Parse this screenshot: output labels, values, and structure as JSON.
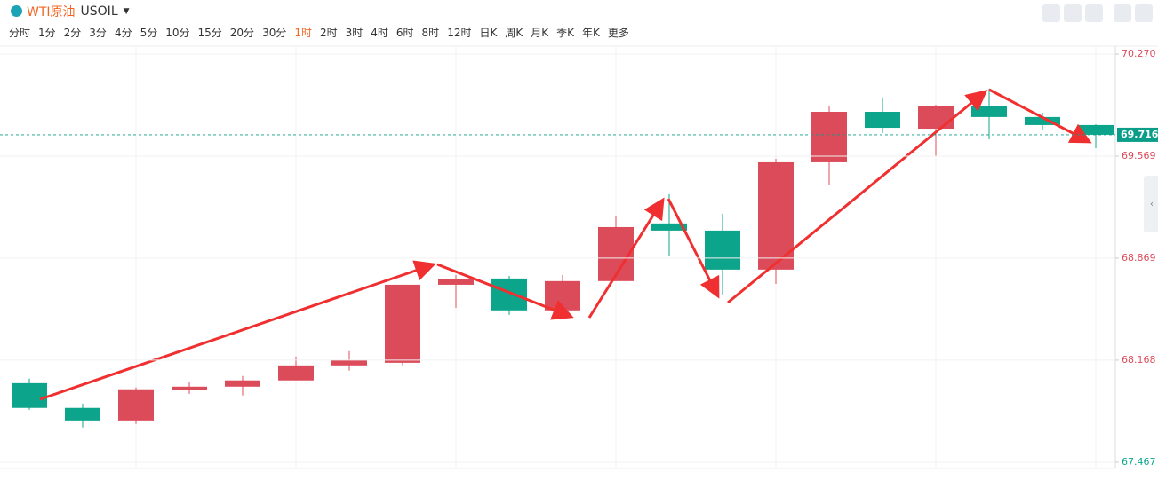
{
  "header": {
    "title": "WTI原油",
    "symbol": "USOIL"
  },
  "intervals": [
    "分时",
    "1分",
    "2分",
    "3分",
    "4分",
    "5分",
    "10分",
    "15分",
    "20分",
    "30分",
    "1时",
    "2时",
    "3时",
    "4时",
    "6时",
    "8时",
    "12时",
    "日K",
    "周K",
    "月K",
    "季K",
    "年K",
    "更多"
  ],
  "active_interval": "1时",
  "chart_data": {
    "type": "candlestick",
    "up_color": "#dc4b5a",
    "down_color": "#0ca58b",
    "open": [
      68.01,
      67.84,
      67.754,
      67.961,
      67.986,
      68.029,
      68.132,
      68.15,
      68.686,
      68.729,
      68.51,
      68.711,
      69.107,
      69.058,
      68.79,
      69.527,
      69.874,
      69.758,
      69.911,
      69.838,
      69.783
    ],
    "high": [
      68.041,
      67.87,
      67.98,
      68.016,
      68.059,
      68.193,
      68.23,
      68.686,
      68.753,
      68.747,
      68.753,
      69.155,
      69.308,
      69.174,
      69.551,
      69.917,
      69.972,
      69.923,
      70.032,
      69.868,
      69.789
    ],
    "low": [
      67.827,
      67.706,
      67.73,
      67.937,
      67.925,
      68.029,
      68.096,
      68.132,
      68.528,
      68.479,
      68.51,
      68.711,
      68.887,
      68.613,
      68.692,
      69.369,
      69.728,
      69.569,
      69.685,
      69.752,
      69.624
    ],
    "close": [
      67.84,
      67.754,
      67.968,
      67.986,
      68.029,
      68.132,
      68.169,
      68.686,
      68.723,
      68.51,
      68.711,
      69.082,
      69.058,
      68.79,
      69.527,
      69.874,
      69.764,
      69.911,
      69.838,
      69.783,
      69.716
    ],
    "last_price": 69.716,
    "last_price_color": "#0a9e8a",
    "ylim": [
      67.424,
      70.325
    ],
    "yticks": [
      67.467,
      68.168,
      68.869,
      69.569,
      {
        "value": 70.27,
        "label": "70.270"
      }
    ],
    "ytick_colors": [
      "#0ca58b",
      "#dc4b5a",
      "#dc4b5a",
      "#dc4b5a",
      "#dc4b5a"
    ],
    "grid": true
  }
}
